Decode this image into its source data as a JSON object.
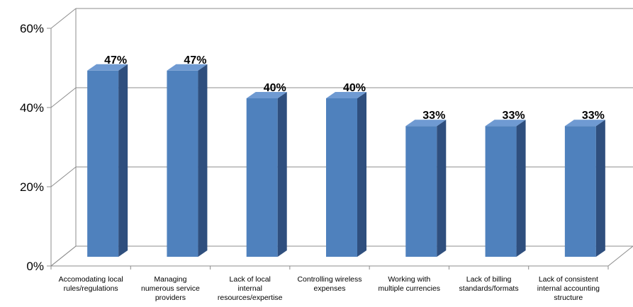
{
  "chart_data": {
    "type": "bar",
    "title": "",
    "xlabel": "",
    "ylabel": "",
    "ylim": [
      0,
      60
    ],
    "yticks": [
      "0%",
      "20%",
      "40%",
      "60%"
    ],
    "grid": true,
    "legend": "none",
    "categories": [
      [
        "Accomodating local",
        "rules/regulations"
      ],
      [
        "Managing",
        "numerous service",
        "providers"
      ],
      [
        "Lack of local",
        "internal",
        "resources/expertise"
      ],
      [
        "Controlling wireless",
        "expenses"
      ],
      [
        "Working with",
        "multiple currencies"
      ],
      [
        "Lack of billing",
        "standards/formats"
      ],
      [
        "Lack of consistent",
        "internal accounting",
        "structure"
      ]
    ],
    "values": [
      47,
      47,
      40,
      40,
      33,
      33,
      33
    ],
    "data_labels": [
      "47%",
      "47%",
      "40%",
      "40%",
      "33%",
      "33%",
      "33%"
    ],
    "colors": {
      "bar_front": "#4f81bd",
      "bar_side": "#2f4f7e",
      "bar_top": "#6f9ad2",
      "gridline": "#8c8c8c",
      "axis": "#8c8c8c"
    }
  }
}
